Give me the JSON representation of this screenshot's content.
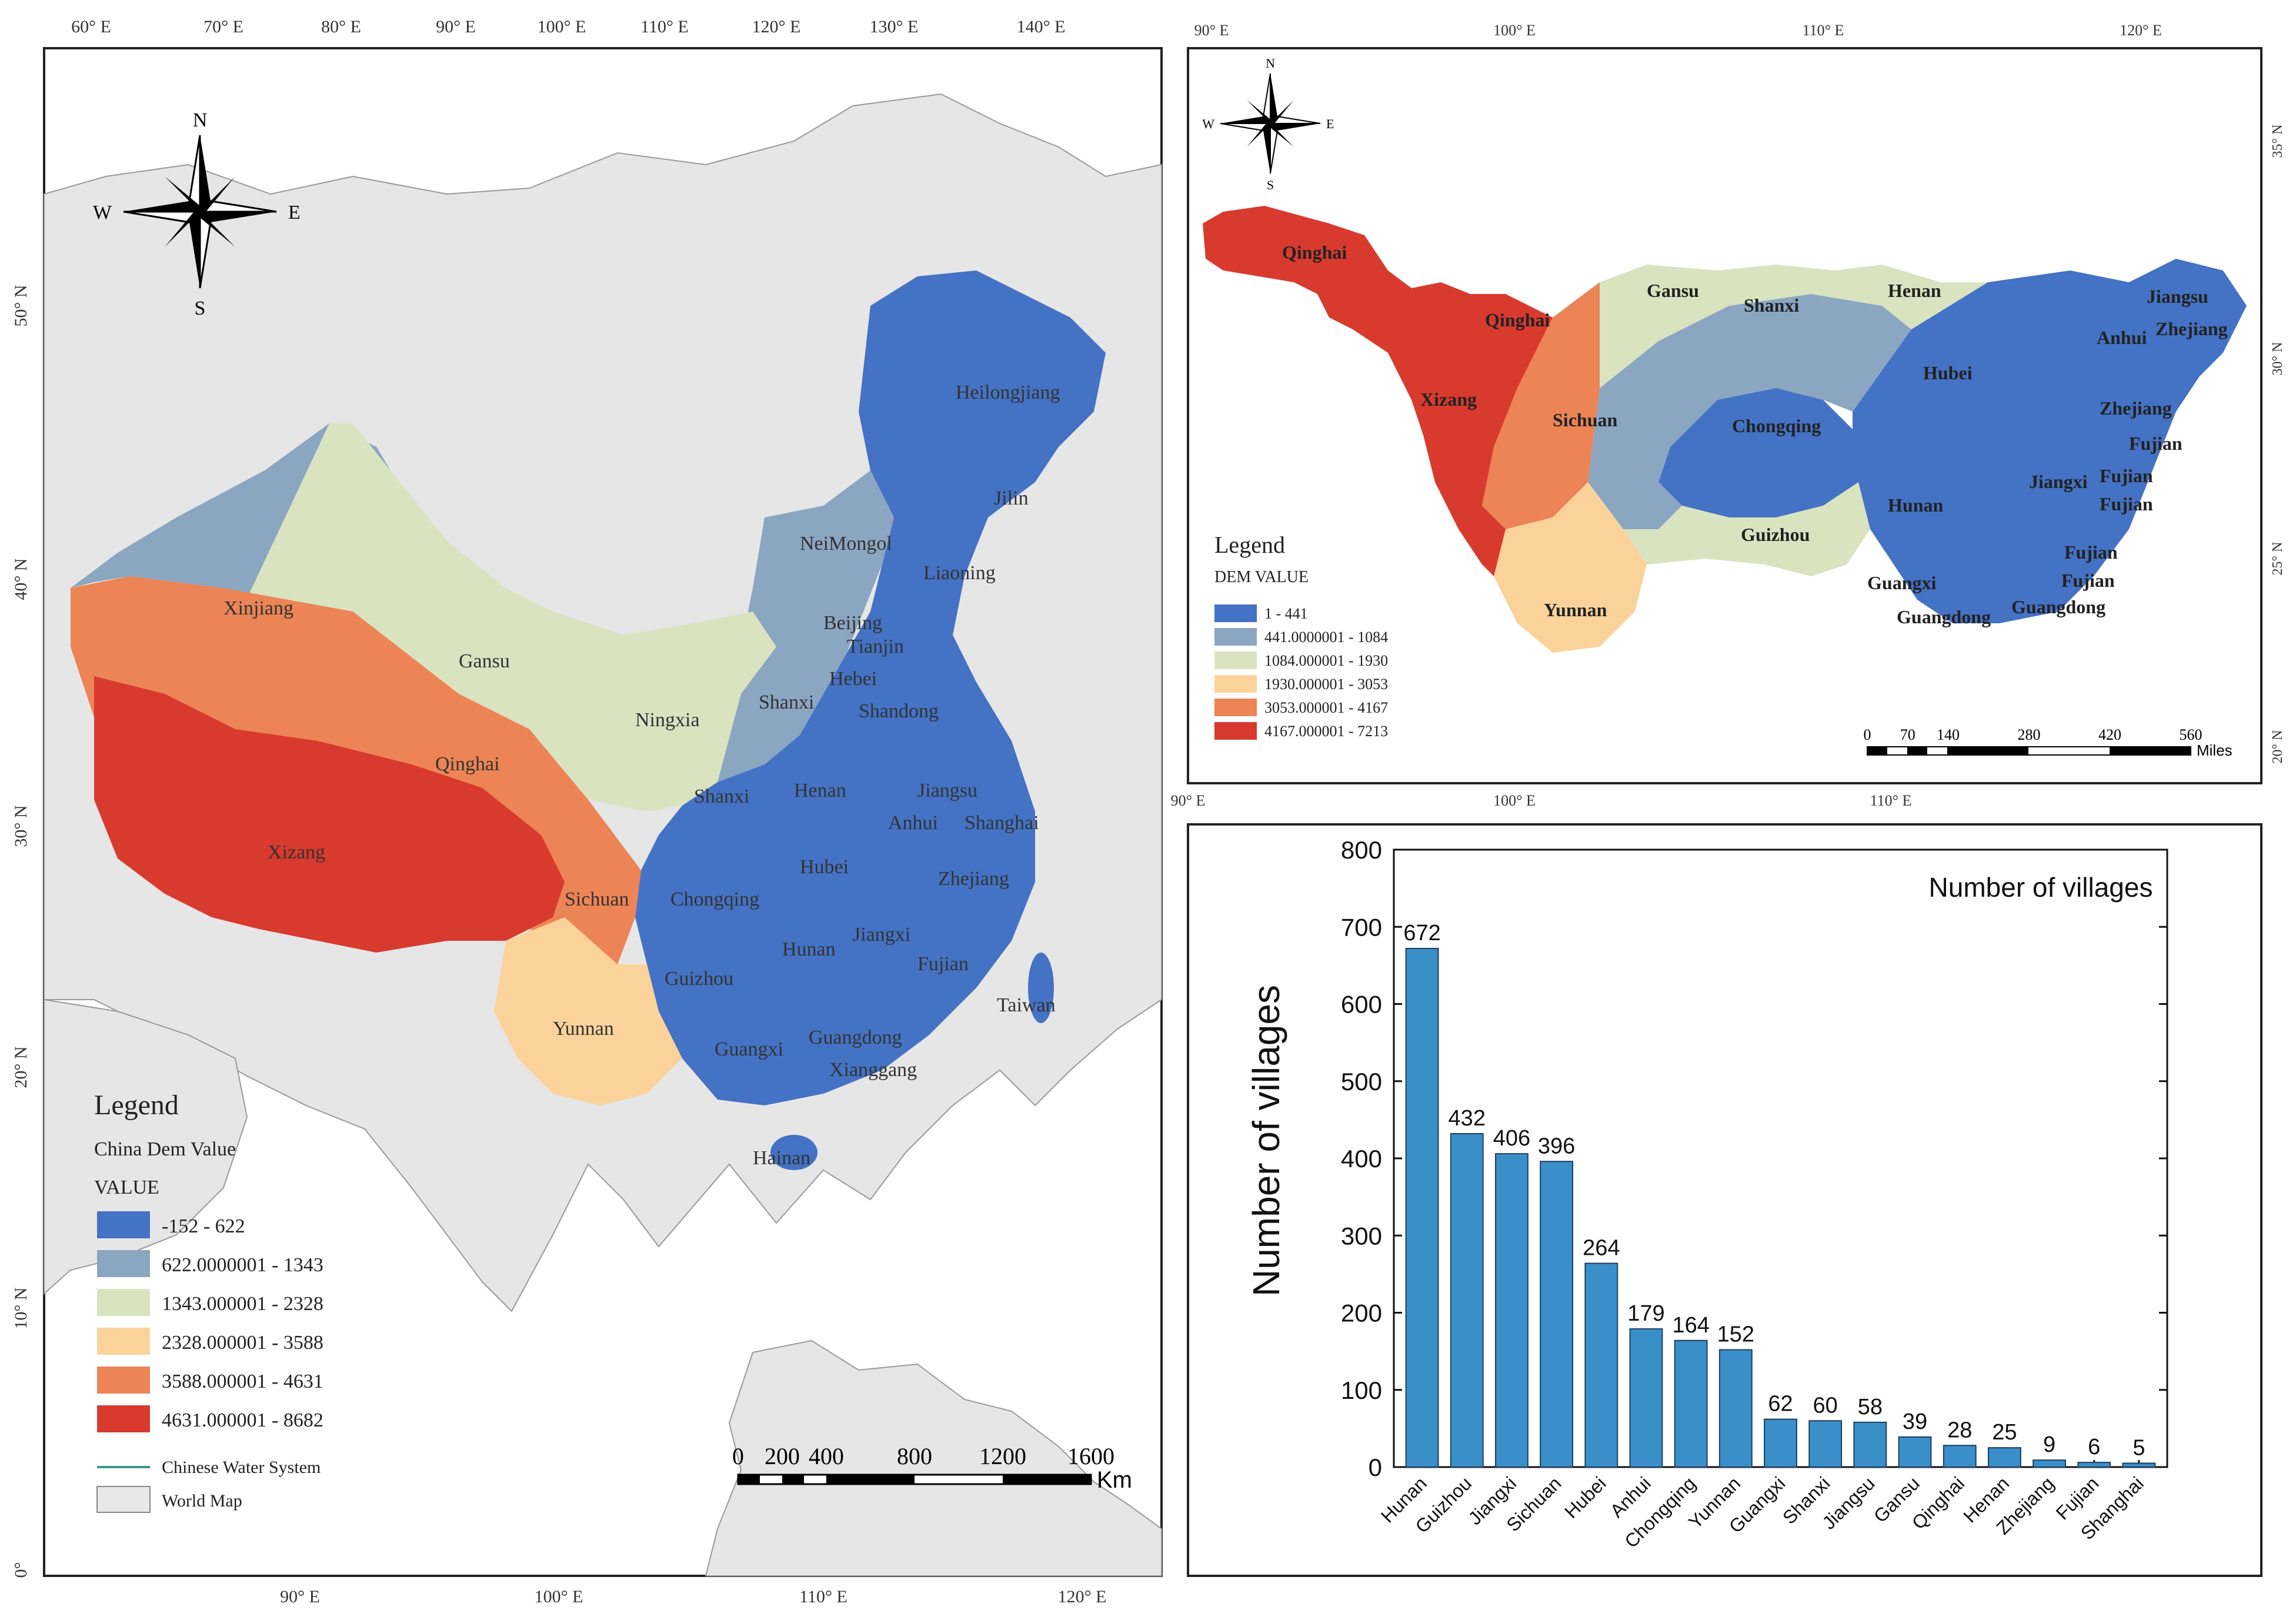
{
  "map_left": {
    "top_lon_labels": [
      "60° E",
      "70° E",
      "80° E",
      "90° E",
      "100° E",
      "110° E",
      "120° E",
      "130° E",
      "140° E"
    ],
    "bottom_lon_labels": [
      "90° E",
      "100° E",
      "110° E",
      "120° E"
    ],
    "lat_labels": [
      "50° N",
      "40° N",
      "30° N",
      "20° N",
      "10° N",
      "0°"
    ],
    "compass": {
      "n": "N",
      "s": "S",
      "e": "E",
      "w": "W"
    },
    "province_labels": [
      "Heilongjiang",
      "Jilin",
      "NeiMongol",
      "Liaoning",
      "Xinjiang",
      "Beijing",
      "Tianjin",
      "Hebei",
      "Gansu",
      "Ningxia",
      "Shanxi",
      "Shandong",
      "Qinghai",
      "Shanxi",
      "Henan",
      "Jiangsu",
      "Anhui",
      "Shanghai",
      "Xizang",
      "Sichuan",
      "Chongqing",
      "Hubei",
      "Zhejiang",
      "Hunan",
      "Jiangxi",
      "Fujian",
      "Guizhou",
      "Taiwan",
      "Yunnan",
      "Guangxi",
      "Guangdong",
      "Xianggang",
      "Hainan"
    ],
    "legend": {
      "title": "Legend",
      "subtitle": "China Dem Value",
      "value_label": "VALUE",
      "classes": [
        {
          "label": "-152 - 622",
          "color": "#4472c4"
        },
        {
          "label": "622.0000001 - 1343",
          "color": "#8aa6c1"
        },
        {
          "label": "1343.000001 - 2328",
          "color": "#d9e3c0"
        },
        {
          "label": "2328.000001 - 3588",
          "color": "#fbd39a"
        },
        {
          "label": "3588.000001 - 4631",
          "color": "#ec8455"
        },
        {
          "label": "4631.000001 - 8682",
          "color": "#d93a2e"
        }
      ],
      "water_label": "Chinese Water System",
      "world_label": "World Map",
      "water_color": "#3a9a8a",
      "world_color": "#e8e8e8"
    },
    "scale": {
      "ticks": [
        "0",
        "200",
        "400",
        "800",
        "1200",
        "1600"
      ],
      "unit": "Km"
    }
  },
  "map_right": {
    "top_lon_labels": [
      "90° E",
      "100° E",
      "110° E",
      "120° E"
    ],
    "bottom_lon_labels": [
      "90° E",
      "100° E",
      "110° E"
    ],
    "lat_labels": [
      "35° N",
      "30° N",
      "25° N",
      "20° N"
    ],
    "compass": {
      "n": "N",
      "s": "S",
      "e": "E",
      "w": "W"
    },
    "province_labels": [
      "Qinghai",
      "Qinghai",
      "Gansu",
      "Shanxi",
      "Henan",
      "Jiangsu",
      "Anhui",
      "Zhejiang",
      "Xizang",
      "Sichuan",
      "Chongqing",
      "Hubei",
      "Zhejiang",
      "Fujian",
      "Jiangxi",
      "Fujian",
      "Fujian",
      "Hunan",
      "Guizhou",
      "Fujian",
      "Fujian",
      "Yunnan",
      "Guangxi",
      "Guangdong",
      "Guangdong"
    ],
    "legend": {
      "title": "Legend",
      "subtitle": "DEM VALUE",
      "classes": [
        {
          "label": "1 - 441",
          "color": "#4472c4"
        },
        {
          "label": "441.0000001 - 1084",
          "color": "#8aa6c1"
        },
        {
          "label": "1084.000001 - 1930",
          "color": "#d9e3c0"
        },
        {
          "label": "1930.000001 - 3053",
          "color": "#fbd39a"
        },
        {
          "label": "3053.000001 - 4167",
          "color": "#ec8455"
        },
        {
          "label": "4167.000001 - 7213",
          "color": "#d93a2e"
        }
      ]
    },
    "scale": {
      "ticks": [
        "0",
        "70",
        "140",
        "280",
        "420",
        "560"
      ],
      "unit": "Miles"
    }
  },
  "chart_data": {
    "type": "bar",
    "title": "Number of villages",
    "ylabel": "Number of villages",
    "xlabel": "",
    "ylim": [
      0,
      800
    ],
    "yticks": [
      0,
      100,
      200,
      300,
      400,
      500,
      600,
      700,
      800
    ],
    "categories": [
      "Hunan",
      "Guizhou",
      "Jiangxi",
      "Sichuan",
      "Hubei",
      "Anhui",
      "Chongqing",
      "Yunnan",
      "Guangxi",
      "Shanxi",
      "Jiangsu",
      "Gansu",
      "Qinghai",
      "Henan",
      "Zhejiang",
      "Fujian",
      "Shanghai"
    ],
    "values": [
      672,
      432,
      406,
      396,
      264,
      179,
      164,
      152,
      62,
      60,
      58,
      39,
      28,
      25,
      9,
      6,
      5
    ],
    "bar_color": "#3a8fc9",
    "grid": false
  }
}
